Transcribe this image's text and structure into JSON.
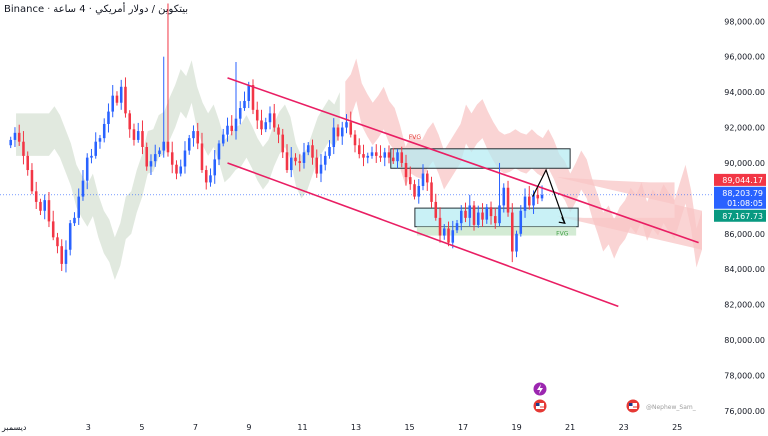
{
  "header": {
    "exchange": "Binance",
    "separator": "·",
    "description": "بيتكوين / دولار أمريكي · 4 ساعة"
  },
  "watermark": "@Nephew_Sam_",
  "colors": {
    "up": "#2962ff",
    "down": "#f23645",
    "channel": "#e91e63",
    "zone_blue": "#b2ebf2",
    "zone_green": "#c8e6c9",
    "cloud_red": "#f8c6c6",
    "cloud_green": "#d7e2d4"
  },
  "chart_data": {
    "type": "candlestick",
    "symbol_line": "بيتكوين / دولار أمريكي · 4 ساعة",
    "exchange": "Binance",
    "x_tick_labels": [
      {
        "label": "ديسمبر",
        "day": 1
      },
      {
        "label": "3",
        "day": 3
      },
      {
        "label": "5",
        "day": 5
      },
      {
        "label": "7",
        "day": 7
      },
      {
        "label": "9",
        "day": 9
      },
      {
        "label": "11",
        "day": 11
      },
      {
        "label": "13",
        "day": 13
      },
      {
        "label": "15",
        "day": 15
      },
      {
        "label": "17",
        "day": 17
      },
      {
        "label": "19",
        "day": 19
      },
      {
        "label": "21",
        "day": 21
      },
      {
        "label": "23",
        "day": 23
      },
      {
        "label": "25",
        "day": 25
      }
    ],
    "y_ticks": [
      "98,000.00",
      "96,000.00",
      "94,000.00",
      "92,000.00",
      "90,000.00",
      "88,000.00",
      "86,000.00",
      "84,000.00",
      "82,000.00",
      "80,000.00",
      "78,000.00",
      "76,000.00"
    ],
    "y_tick_values": [
      98000,
      96000,
      94000,
      92000,
      90000,
      88000,
      86000,
      84000,
      82000,
      80000,
      78000,
      76000
    ],
    "ylim": [
      75600,
      99200
    ],
    "xlim": [
      -0.3,
      26.3
    ],
    "price_labels": [
      {
        "text": "89,044.17",
        "value": 89044.17,
        "kind": "red"
      },
      {
        "text": "88,203.79",
        "value": 88203.79,
        "kind": "blue"
      },
      {
        "text": "01:08:05",
        "value": 88203.79,
        "kind": "countdown"
      },
      {
        "text": "87,167.73",
        "value": 87167.73,
        "kind": "green"
      }
    ],
    "current_price": 88203.79,
    "candle_closes": [
      91300,
      91700,
      91200,
      90400,
      89600,
      88400,
      87800,
      87300,
      87900,
      86700,
      85800,
      85300,
      84300,
      85100,
      86600,
      86900,
      88100,
      89000,
      90300,
      90400,
      91200,
      91400,
      92200,
      92900,
      93800,
      93400,
      94300,
      92800,
      91900,
      91300,
      91800,
      90900,
      89800,
      90100,
      90500,
      90700,
      91200,
      90600,
      89900,
      89400,
      89800,
      90700,
      91400,
      91800,
      91100,
      89600,
      88900,
      89300,
      90200,
      91100,
      91600,
      92100,
      91800,
      92500,
      93100,
      93500,
      94400,
      93000,
      92400,
      91900,
      92300,
      92800,
      92000,
      91600,
      90600,
      89600,
      90300,
      90100,
      90000,
      90600,
      91000,
      90300,
      89400,
      89900,
      90400,
      90900,
      92000,
      91500,
      92000,
      92300,
      91600,
      91000,
      90500,
      90300,
      90400,
      90600,
      90400,
      90300,
      90600,
      90300,
      90100,
      90600,
      90000,
      89200,
      88800,
      88100,
      88700,
      89400,
      88900,
      87800,
      86900,
      85900,
      86300,
      85500,
      86200,
      86600,
      87300,
      86900,
      87600,
      86500,
      87200,
      86800,
      87500,
      87000,
      86600,
      87600,
      88600,
      87200,
      85000,
      86000,
      87300,
      88100,
      87600,
      88200,
      88000,
      88200
    ],
    "annotations": {
      "channel_upper": {
        "from": [
          8.2,
          94800
        ],
        "to": [
          25.8,
          85500
        ]
      },
      "channel_lower": {
        "from": [
          8.2,
          90000
        ],
        "to": [
          22.8,
          81900
        ]
      },
      "fvg_top": {
        "x": [
          14.3,
          21.0
        ],
        "y": [
          89700,
          90800
        ],
        "label": "FVG"
      },
      "fvg_bottom": {
        "x": [
          15.2,
          21.3
        ],
        "y": [
          86400,
          87450
        ],
        "label": "FVG"
      },
      "projection": [
        [
          19.6,
          88100
        ],
        [
          20.1,
          89600
        ],
        [
          20.8,
          86600
        ]
      ]
    }
  }
}
